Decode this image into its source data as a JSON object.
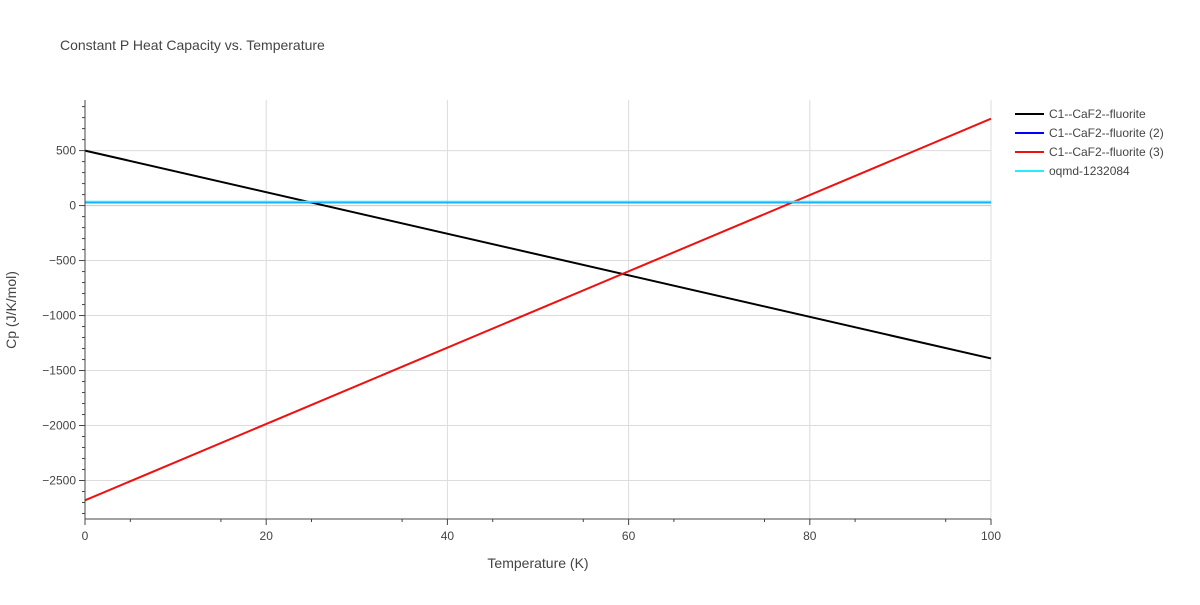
{
  "chart_data": {
    "type": "line",
    "title": "Constant P Heat Capacity vs. Temperature",
    "xlabel": "Temperature (K)",
    "ylabel": "Cp (J/K/mol)",
    "xlim": [
      0,
      100
    ],
    "ylim": [
      -2850,
      960
    ],
    "x_ticks": [
      0,
      20,
      40,
      60,
      80,
      100
    ],
    "y_ticks": [
      500,
      0,
      -500,
      -1000,
      -1500,
      -2000,
      -2500
    ],
    "y_tick_labels": [
      "500",
      "0",
      "−500",
      "−1000",
      "−1500",
      "−2000",
      "−2500"
    ],
    "grid": true,
    "legend_position": "right",
    "series": [
      {
        "name": "C1--CaF2--fluorite",
        "color": "#000000",
        "x": [
          0,
          100
        ],
        "y": [
          500,
          -1390
        ]
      },
      {
        "name": "C1--CaF2--fluorite (2)",
        "color": "#0000ff",
        "x": [
          0,
          100
        ],
        "y": [
          30,
          30
        ]
      },
      {
        "name": "C1--CaF2--fluorite (3)",
        "color": "#ee1111",
        "x": [
          0,
          100
        ],
        "y": [
          -2680,
          790
        ]
      },
      {
        "name": "oqmd-1232084",
        "color": "#22eeff",
        "x": [
          0,
          100
        ],
        "y": [
          35,
          35
        ]
      }
    ]
  }
}
